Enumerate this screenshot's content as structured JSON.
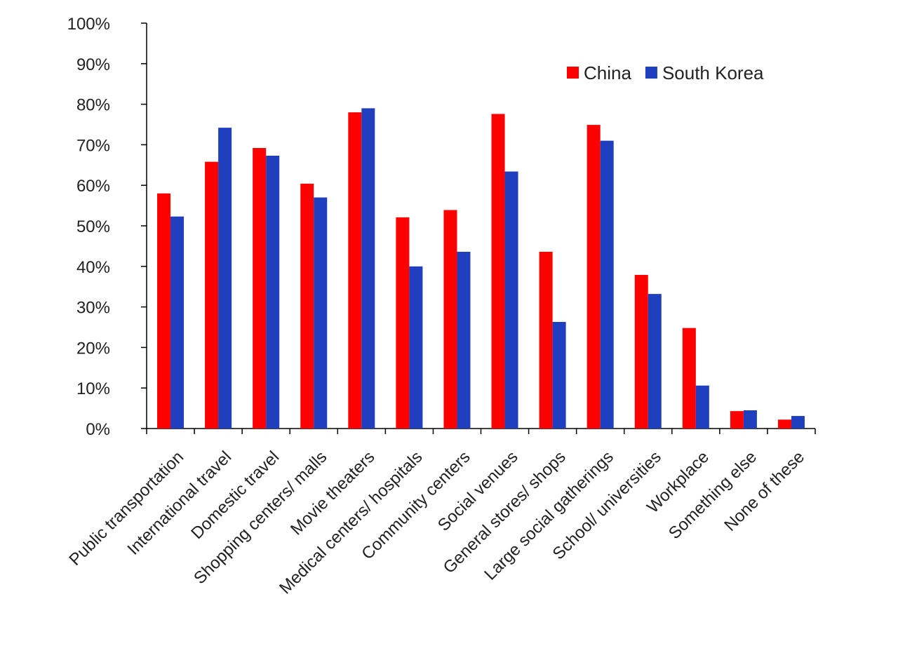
{
  "chart_data": {
    "type": "bar",
    "title": "",
    "xlabel": "",
    "ylabel": "",
    "ylim": [
      0,
      100
    ],
    "y_ticks": [
      "0%",
      "10%",
      "20%",
      "30%",
      "40%",
      "50%",
      "60%",
      "70%",
      "80%",
      "90%",
      "100%"
    ],
    "grid": false,
    "legend_position": "top-right",
    "categories": [
      "Public transportation",
      "International travel",
      "Domestic travel",
      "Shopping centers/ malls",
      "Movie theaters",
      "Medical centers/ hospitals",
      "Community centers",
      "Social venues",
      "General stores/ shops",
      "Large social gatherings",
      "School/ universities",
      "Workplace",
      "Something else",
      "None of these"
    ],
    "series": [
      {
        "name": "China",
        "color": "#ff0000",
        "values": [
          58,
          65.8,
          69.2,
          60.4,
          78,
          52.1,
          53.9,
          77.6,
          43.6,
          74.9,
          37.9,
          24.8,
          4.3,
          2.2
        ]
      },
      {
        "name": "South Korea",
        "color": "#1f3fbf",
        "values": [
          52.3,
          74.2,
          67.3,
          57,
          79,
          40,
          43.6,
          63.4,
          26.3,
          71,
          33.2,
          10.6,
          4.5,
          3.1
        ]
      }
    ]
  }
}
